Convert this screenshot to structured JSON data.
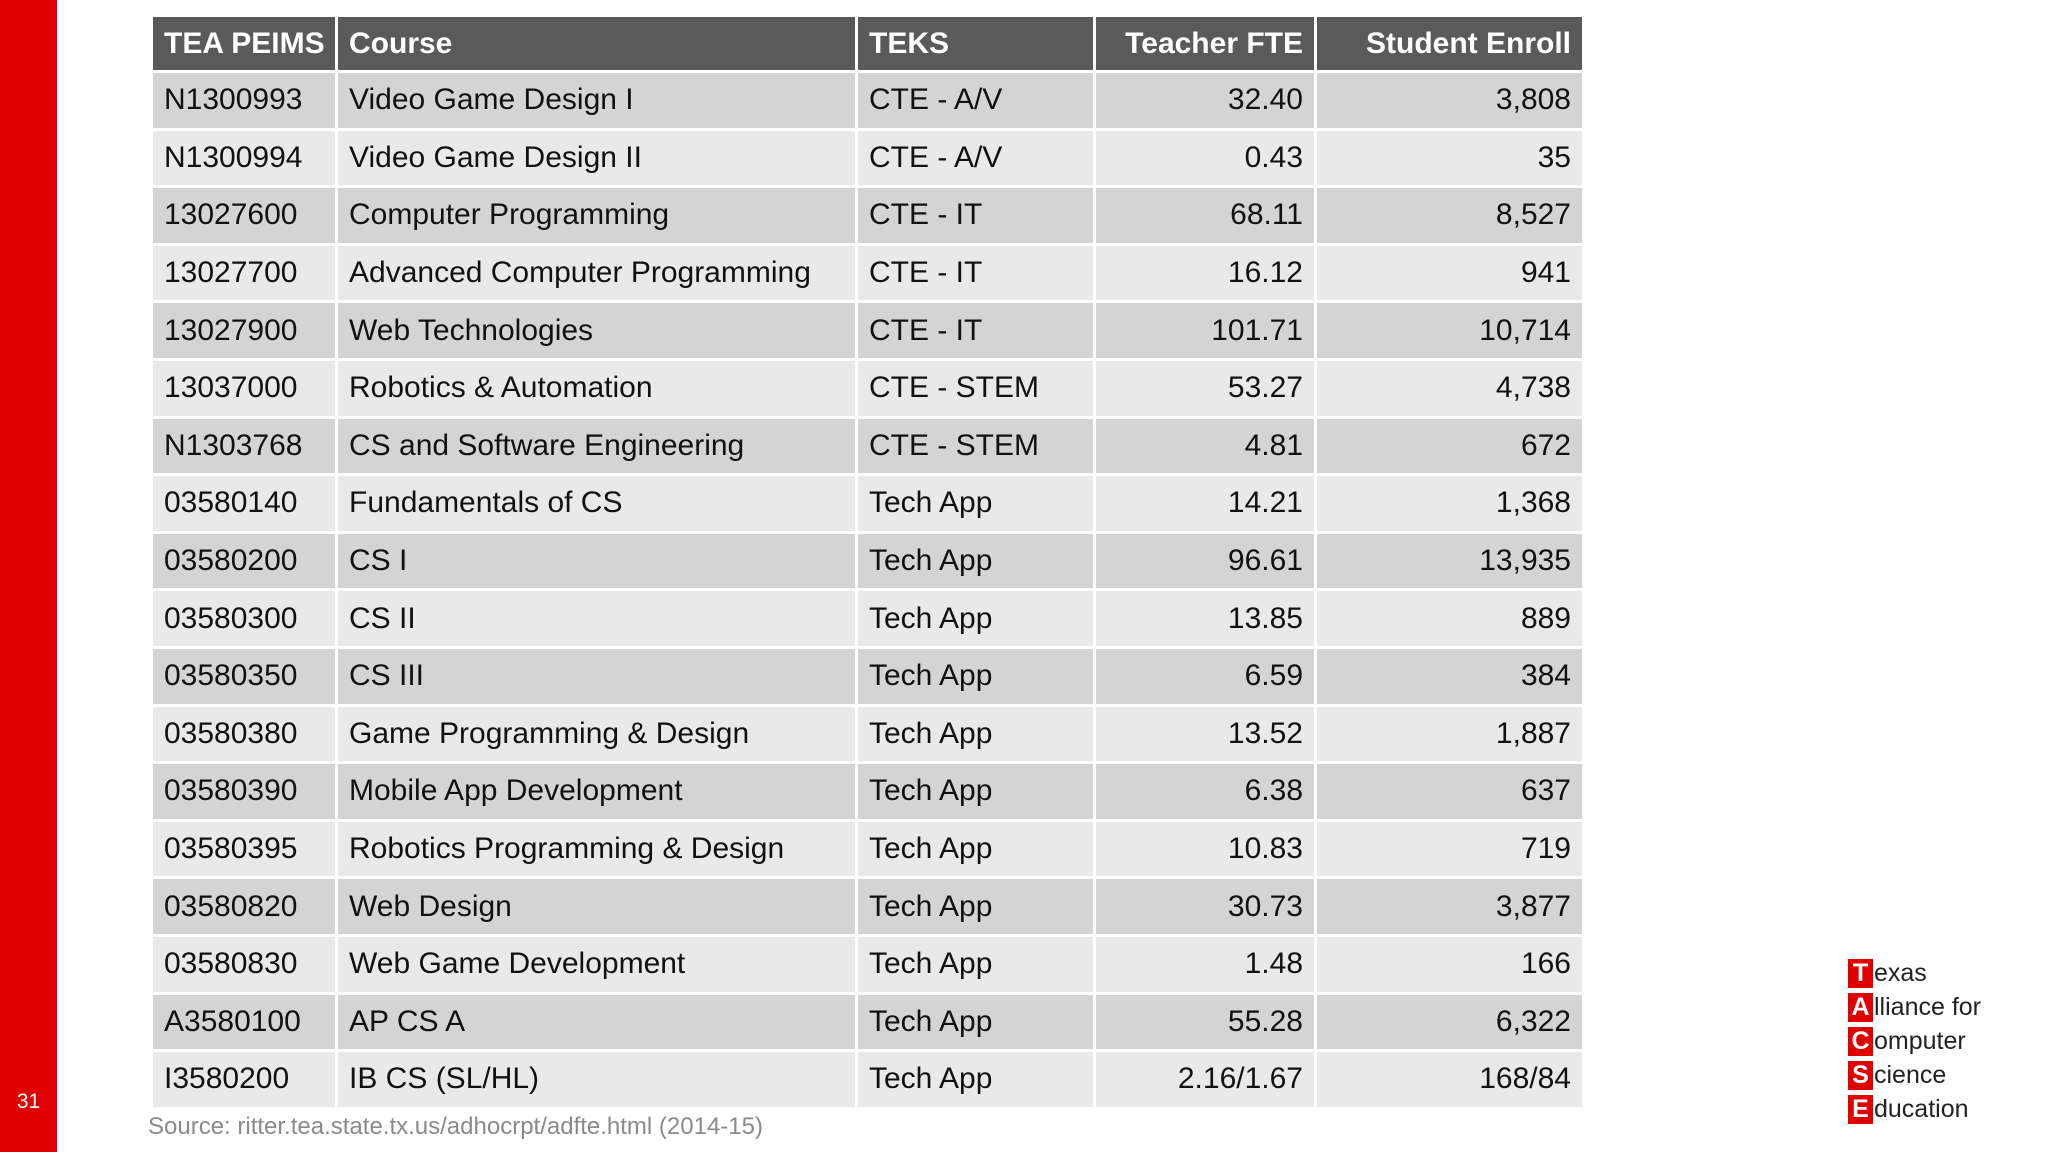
{
  "slide": {
    "number": "31",
    "source_note": "Source: ritter.tea.state.tx.us/adhocrpt/adfte.html (2014-15)"
  },
  "table": {
    "headers": [
      "TEA PEIMS",
      "Course",
      "TEKS",
      "Teacher FTE",
      "Student Enroll"
    ],
    "rows": [
      [
        "N1300993",
        "Video Game Design I",
        "CTE - A/V",
        "32.40",
        "3,808"
      ],
      [
        "N1300994",
        "Video Game Design II",
        "CTE - A/V",
        "0.43",
        "35"
      ],
      [
        "13027600",
        "Computer Programming",
        "CTE - IT",
        "68.11",
        "8,527"
      ],
      [
        "13027700",
        "Advanced Computer Programming",
        "CTE - IT",
        "16.12",
        "941"
      ],
      [
        "13027900",
        "Web Technologies",
        "CTE - IT",
        "101.71",
        "10,714"
      ],
      [
        "13037000",
        "Robotics & Automation",
        "CTE - STEM",
        "53.27",
        "4,738"
      ],
      [
        "N1303768",
        "CS and Software Engineering",
        "CTE - STEM",
        "4.81",
        "672"
      ],
      [
        "03580140",
        "Fundamentals of CS",
        "Tech App",
        "14.21",
        "1,368"
      ],
      [
        "03580200",
        "CS I",
        "Tech App",
        "96.61",
        "13,935"
      ],
      [
        "03580300",
        "CS II",
        "Tech App",
        "13.85",
        "889"
      ],
      [
        "03580350",
        "CS III",
        "Tech App",
        "6.59",
        "384"
      ],
      [
        "03580380",
        "Game Programming & Design",
        "Tech App",
        "13.52",
        "1,887"
      ],
      [
        "03580390",
        "Mobile App Development",
        "Tech App",
        "6.38",
        "637"
      ],
      [
        "03580395",
        "Robotics Programming & Design",
        "Tech App",
        "10.83",
        "719"
      ],
      [
        "03580820",
        "Web Design",
        "Tech App",
        "30.73",
        "3,877"
      ],
      [
        "03580830",
        "Web Game Development",
        "Tech App",
        "1.48",
        "166"
      ],
      [
        "A3580100",
        "AP CS A",
        "Tech App",
        "55.28",
        "6,322"
      ],
      [
        "I3580200",
        "IB CS (SL/HL)",
        "Tech App",
        "2.16/1.67",
        "168/84"
      ]
    ]
  },
  "logo": {
    "lines": [
      {
        "letter": "T",
        "rest": "exas"
      },
      {
        "letter": "A",
        "rest": "lliance for"
      },
      {
        "letter": "C",
        "rest": "omputer"
      },
      {
        "letter": "S",
        "rest": "cience"
      },
      {
        "letter": "E",
        "rest": "ducation"
      }
    ]
  },
  "colors": {
    "accent_red": "#e00000",
    "header_gray": "#5a5a5a",
    "row_dark": "#d4d4d4",
    "row_light": "#e9e9e9"
  }
}
